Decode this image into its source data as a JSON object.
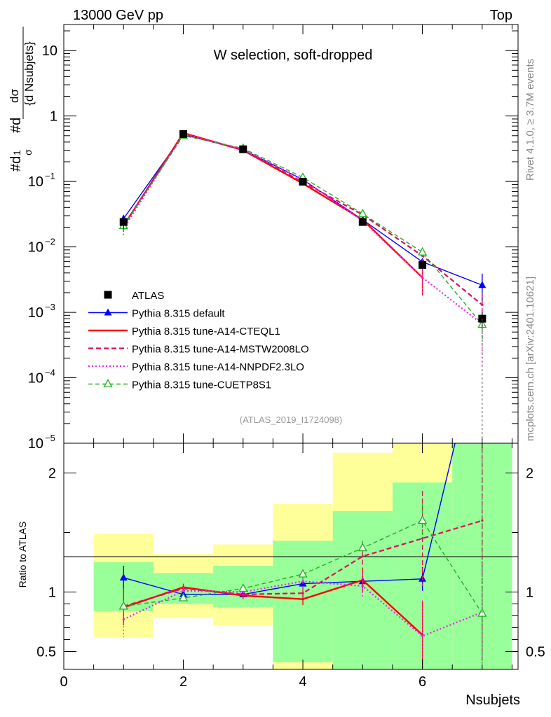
{
  "header": {
    "left_label": "13000 GeV pp",
    "right_label": "Top"
  },
  "side_labels": {
    "rivet": "Rivet 4.1.0, ≥ 3.7M events",
    "mcplots": "mcplots.cern.ch [arXiv:2401.10621]"
  },
  "colors": {
    "atlas": "#000000",
    "default": "#0000ff",
    "cteql1": "#ff0000",
    "mstw": "#e0105a",
    "nnpdf": "#ee22ee",
    "cuetp8s1": "#22b022",
    "band_outer": "#ffff99",
    "band_inner": "#99ff99"
  },
  "chart_data": [
    {
      "type": "line",
      "title": "W selection, soft-dropped",
      "xlabel": "Nsubjets",
      "ylabel": "#d1/σ #dσ/{d Nsubjets}",
      "ylabel_parts": {
        "num": "dσ",
        "den": "{d Nsubjets}"
      },
      "yscale": "log",
      "xlim": [
        0,
        7.6
      ],
      "ylim": [
        1e-05,
        25
      ],
      "y_ticks": [
        {
          "value": 10,
          "base": "10",
          "exp": ""
        },
        {
          "value": 1,
          "base": "1",
          "exp": ""
        },
        {
          "value": 0.1,
          "base": "10",
          "exp": "−1"
        },
        {
          "value": 0.01,
          "base": "10",
          "exp": "−2"
        },
        {
          "value": 0.001,
          "base": "10",
          "exp": "−3"
        },
        {
          "value": 0.0001,
          "base": "10",
          "exp": "−4"
        },
        {
          "value": 1e-05,
          "base": "10",
          "exp": "−5"
        }
      ],
      "analysis_tag": "(ATLAS_2019_I1724098)",
      "legend_position": "lower-left",
      "x": [
        1,
        2,
        3,
        4,
        5,
        6,
        7
      ],
      "series": [
        {
          "name": "ATLAS",
          "key": "atlas",
          "values": [
            0.024,
            0.53,
            0.31,
            0.099,
            0.024,
            0.0053,
            0.0008
          ],
          "err_hi": [
            0.005,
            0.03,
            0.015,
            0.006,
            0.002,
            0.0007,
            0.0002
          ],
          "err_lo": [
            0.005,
            0.03,
            0.015,
            0.006,
            0.002,
            0.0007,
            0.0002
          ]
        },
        {
          "name": "Pythia 8.315 default",
          "key": "default",
          "values": [
            0.027,
            0.52,
            0.305,
            0.106,
            0.026,
            0.0059,
            0.0026
          ],
          "err_hi": [
            0.003,
            0.006,
            0.004,
            0.003,
            0.0012,
            0.0006,
            0.0013
          ],
          "err_lo": [
            0.003,
            0.006,
            0.004,
            0.003,
            0.0012,
            0.0006,
            0.0012
          ]
        },
        {
          "name": "Pythia 8.315 tune-A14-CTEQL1",
          "key": "cteql1",
          "values": [
            0.021,
            0.55,
            0.3,
            0.093,
            0.026,
            0.0034,
            0.0
          ],
          "err_hi": [
            0.004,
            0.01,
            0.006,
            0.004,
            0.002,
            0.0015,
            0
          ],
          "err_lo": [
            0.004,
            0.01,
            0.006,
            0.004,
            0.002,
            0.0016,
            0
          ]
        },
        {
          "name": "Pythia 8.315 tune-A14-MSTW2008LO",
          "key": "mstw",
          "values": [
            0.021,
            0.54,
            0.3,
            0.098,
            0.031,
            0.0073,
            0.0013
          ],
          "err_hi": [
            0.004,
            0.01,
            0.006,
            0.004,
            0.002,
            0.0012,
            0.0007
          ],
          "err_lo": [
            0.004,
            0.01,
            0.006,
            0.004,
            0.002,
            0.0012,
            0.0007
          ]
        },
        {
          "name": "Pythia 8.315 tune-A14-NNPDF2.3LO",
          "key": "nnpdf",
          "values": [
            0.019,
            0.53,
            0.31,
            0.107,
            0.025,
            0.0034,
            0.00066
          ],
          "err_hi": [
            0.004,
            0.01,
            0.006,
            0.004,
            0.002,
            0.0015,
            0.0005
          ],
          "err_lo": [
            0.004,
            0.01,
            0.006,
            0.004,
            0.002,
            0.0015,
            0.0005
          ]
        },
        {
          "name": "Pythia 8.315 tune-CUETP8S1",
          "key": "cuetp8s1",
          "values": [
            0.021,
            0.5,
            0.32,
            0.115,
            0.032,
            0.0083,
            0.00065
          ],
          "err_hi": [
            0.002,
            0.008,
            0.005,
            0.004,
            0.002,
            0.0012,
            0.0003
          ],
          "err_lo": [
            0.002,
            0.008,
            0.005,
            0.004,
            0.002,
            0.0012,
            0.0003
          ]
        }
      ]
    },
    {
      "type": "line",
      "title": "",
      "xlabel": "Nsubjets",
      "ylabel": "Ratio to ATLAS",
      "xlim": [
        0,
        7.6
      ],
      "ylim": [
        0.35,
        2.25
      ],
      "x_ticks": [
        0,
        2,
        4,
        6
      ],
      "y_ticks": [
        {
          "value": 0.5,
          "label": "0.5"
        },
        {
          "value": 1,
          "label": "1"
        },
        {
          "value": 2,
          "label": "2"
        }
      ],
      "bands": {
        "bin_edges": [
          0.5,
          1.5,
          2.5,
          3.5,
          4.5,
          5.5,
          6.5,
          7.5
        ],
        "outer_lo": [
          0.62,
          0.79,
          0.72,
          0.21,
          0.1,
          0.1,
          0.1
        ],
        "outer_hi": [
          1.49,
          1.32,
          1.4,
          1.74,
          2.17,
          2.5,
          2.5
        ],
        "inner_lo": [
          0.84,
          0.9,
          0.87,
          0.41,
          0.1,
          0.1,
          0.1
        ],
        "inner_hi": [
          1.25,
          1.16,
          1.22,
          1.43,
          1.68,
          1.92,
          2.5
        ]
      },
      "x": [
        1,
        2,
        3,
        4,
        5,
        6,
        7
      ],
      "series": [
        {
          "name": "Pythia 8.315 default",
          "key": "default",
          "values": [
            1.12,
            0.98,
            0.98,
            1.07,
            1.09,
            1.11,
            3.2
          ],
          "err": [
            0.1,
            0.02,
            0.02,
            0.03,
            0.06,
            0.1,
            0.3
          ]
        },
        {
          "name": "Pythia 8.315 tune-A14-CTEQL1",
          "key": "cteql1",
          "values": [
            0.87,
            1.04,
            0.97,
            0.94,
            1.1,
            0.64,
            null
          ],
          "err": [
            0.15,
            0.03,
            0.03,
            0.05,
            0.1,
            0.28,
            0
          ]
        },
        {
          "name": "Pythia 8.315 tune-A14-MSTW2008LO",
          "key": "mstw",
          "values": [
            0.88,
            1.03,
            0.98,
            0.99,
            1.3,
            1.45,
            1.6
          ],
          "err": [
            0.15,
            0.03,
            0.03,
            0.05,
            0.1,
            0.4,
            1.2
          ]
        },
        {
          "name": "Pythia 8.315 tune-A14-NNPDF2.3LO",
          "key": "nnpdf",
          "values": [
            0.77,
            1.01,
            1.0,
            1.09,
            1.05,
            0.63,
            0.83
          ],
          "err": [
            0.15,
            0.03,
            0.03,
            0.05,
            0.1,
            0.3,
            0.4
          ]
        },
        {
          "name": "Pythia 8.315 tune-CUETP8S1",
          "key": "cuetp8s1",
          "values": [
            0.88,
            0.95,
            1.03,
            1.15,
            1.37,
            1.6,
            0.82
          ],
          "err": [
            0.05,
            0.02,
            0.03,
            0.04,
            0.06,
            0.15,
            0.4
          ]
        }
      ]
    }
  ]
}
